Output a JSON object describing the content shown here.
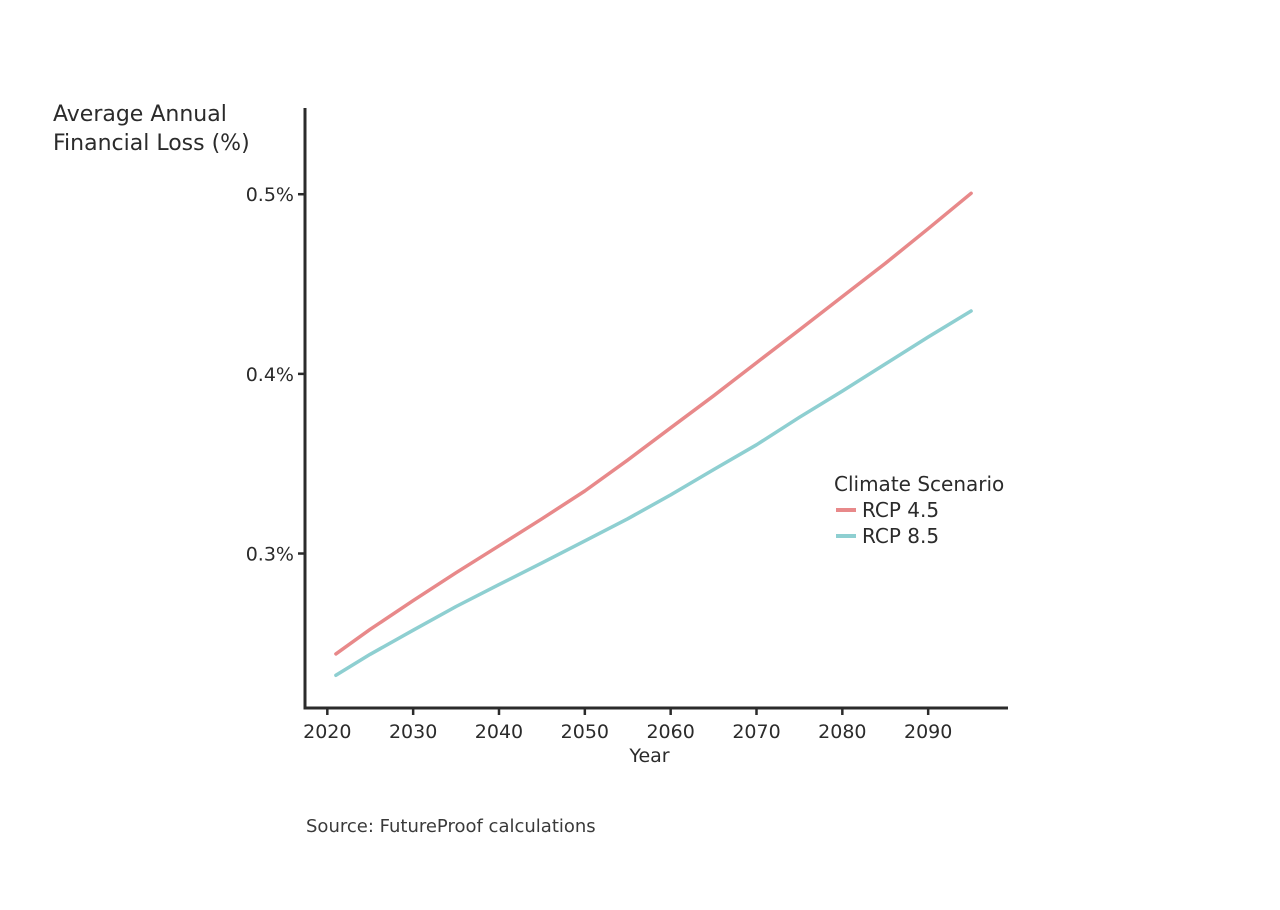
{
  "chart_data": {
    "type": "line",
    "title": "",
    "ylabel_lines": [
      "Average Annual",
      "Financial Loss (%)"
    ],
    "xlabel": "Year",
    "x": [
      2021,
      2025,
      2030,
      2035,
      2040,
      2045,
      2050,
      2055,
      2060,
      2065,
      2070,
      2075,
      2080,
      2085,
      2090,
      2095
    ],
    "series": [
      {
        "name": "RCP 4.5",
        "color": "#e8898a",
        "values": [
          0.2441,
          0.2578,
          0.2738,
          0.2893,
          0.3043,
          0.3193,
          0.3348,
          0.352,
          0.37,
          0.3878,
          0.4062,
          0.4245,
          0.443,
          0.4615,
          0.4808,
          0.5005
        ]
      },
      {
        "name": "RCP 8.5",
        "color": "#8ecfd1",
        "values": [
          0.2322,
          0.2439,
          0.2573,
          0.2705,
          0.2827,
          0.2948,
          0.307,
          0.3193,
          0.3326,
          0.3467,
          0.3605,
          0.3758,
          0.3904,
          0.4055,
          0.4205,
          0.435
        ]
      }
    ],
    "xticks": [
      2020,
      2030,
      2040,
      2050,
      2060,
      2070,
      2080,
      2090
    ],
    "xtick_labels": [
      "2020",
      "2030",
      "2040",
      "2050",
      "2060",
      "2070",
      "2080",
      "2090"
    ],
    "yticks": [
      0.3,
      0.4,
      0.5
    ],
    "ytick_labels": [
      "0.3%",
      "0.4%",
      "0.5%"
    ],
    "xlim": [
      2017.4,
      2099.3
    ],
    "ylim": [
      0.214,
      0.548
    ],
    "legend": {
      "title": "Climate Scenario",
      "position": "right"
    },
    "grid": false
  },
  "source": "Source: FutureProof calculations"
}
